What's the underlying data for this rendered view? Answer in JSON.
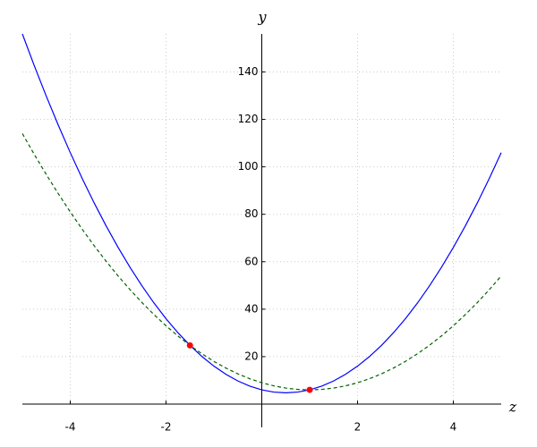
{
  "chart_data": {
    "type": "line",
    "xlabel": "z",
    "ylabel": "y",
    "xlim": [
      -5,
      5
    ],
    "ylim": [
      0,
      156
    ],
    "xticks": [
      -4,
      -2,
      2,
      4
    ],
    "yticks": [
      20,
      40,
      60,
      80,
      100,
      120,
      140
    ],
    "grid": true,
    "x": [
      -5,
      -4.75,
      -4.5,
      -4.25,
      -4,
      -3.75,
      -3.5,
      -3.25,
      -3,
      -2.75,
      -2.5,
      -2.25,
      -2,
      -1.75,
      -1.5,
      -1.25,
      -1,
      -0.75,
      -0.5,
      -0.25,
      0,
      0.25,
      0.5,
      0.75,
      1,
      1.25,
      1.5,
      1.75,
      2,
      2.25,
      2.5,
      2.75,
      3,
      3.25,
      3.5,
      3.75,
      4,
      4.25,
      4.5,
      4.75,
      5
    ],
    "series": [
      {
        "color": "#0000ff",
        "linestyle": "solid",
        "values": [
          156,
          142.5625,
          129.75,
          117.5625,
          106,
          95.0625,
          84.75,
          75.0625,
          66,
          57.5625,
          49.75,
          42.5625,
          36,
          30.0625,
          24.75,
          20.0625,
          16,
          12.5625,
          9.75,
          7.5625,
          6,
          5.0625,
          4.75,
          5.0625,
          6,
          7.5625,
          9.75,
          12.5625,
          16,
          20.0625,
          24.75,
          30.0625,
          36,
          42.5625,
          49.75,
          57.5625,
          66,
          75.0625,
          84.75,
          95.0625,
          106
        ]
      },
      {
        "color": "#006400",
        "linestyle": "dashed",
        "values": [
          114,
          105.1875,
          96.75,
          88.6875,
          81,
          73.6875,
          66.75,
          60.1875,
          54,
          48.1875,
          42.75,
          37.6875,
          33,
          28.6875,
          24.75,
          21.1875,
          18,
          15.1875,
          12.75,
          10.6875,
          9,
          7.6875,
          6.75,
          6.1875,
          6,
          6.1875,
          6.75,
          7.6875,
          9,
          10.6875,
          12.75,
          15.1875,
          18,
          21.1875,
          24.75,
          28.6875,
          33,
          37.6875,
          42.75,
          48.1875,
          54
        ]
      }
    ],
    "points": {
      "color": "#ff0000",
      "x": [
        -1.5,
        1
      ],
      "y": [
        24.75,
        6
      ]
    }
  }
}
